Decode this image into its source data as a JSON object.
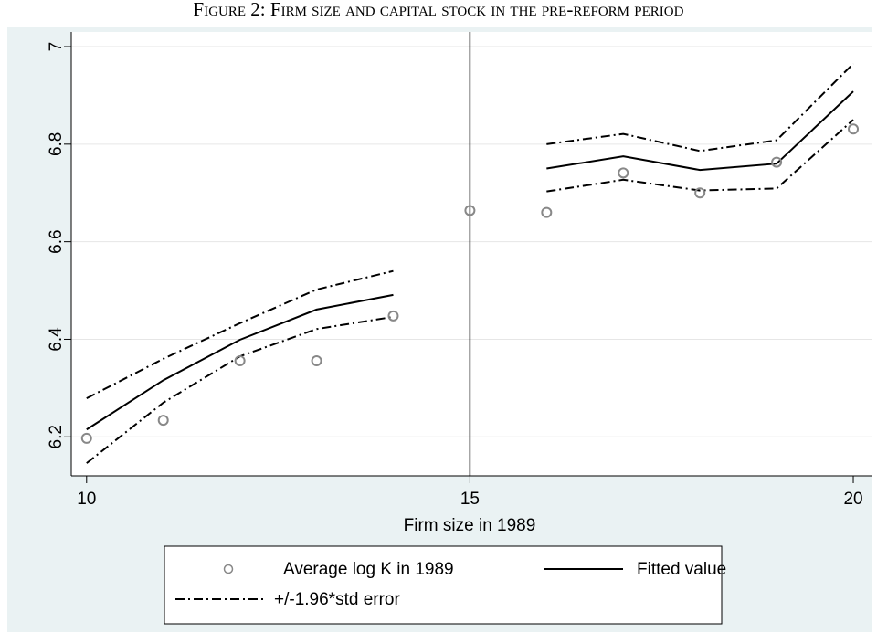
{
  "chart_data": {
    "type": "line",
    "title": "Figure 2: Firm size and capital stock in the pre-reform period",
    "x_label": "Firm size in 1989",
    "x": [
      10,
      11,
      12,
      13,
      14,
      15,
      16,
      17,
      18,
      19,
      20
    ],
    "xlim": [
      9.8,
      20.25
    ],
    "xticks": [
      10,
      15,
      20
    ],
    "ylim": [
      6.12,
      7.03
    ],
    "yticks": [
      6.2,
      6.4,
      6.6,
      6.8,
      7
    ],
    "grid": true,
    "vline": 15,
    "scatter": {
      "name": "Average log K in 1989",
      "color": "#888888",
      "values": [
        6.197,
        6.234,
        6.356,
        6.356,
        6.448,
        6.664,
        6.66,
        6.741,
        6.7,
        6.763,
        6.831
      ]
    },
    "series": [
      {
        "name": "Fitted value",
        "color": "#000000",
        "values": [
          6.215,
          6.316,
          6.399,
          6.461,
          6.491,
          null,
          6.75,
          6.775,
          6.747,
          6.76,
          6.908
        ]
      },
      {
        "name": "+/-1.96*std error",
        "color": "#000000",
        "upper": [
          6.279,
          6.36,
          6.433,
          6.502,
          6.54,
          null,
          6.8,
          6.821,
          6.786,
          6.808,
          6.965
        ],
        "lower": [
          6.146,
          6.27,
          6.365,
          6.421,
          6.446,
          null,
          6.703,
          6.727,
          6.705,
          6.709,
          6.85
        ]
      }
    ]
  }
}
